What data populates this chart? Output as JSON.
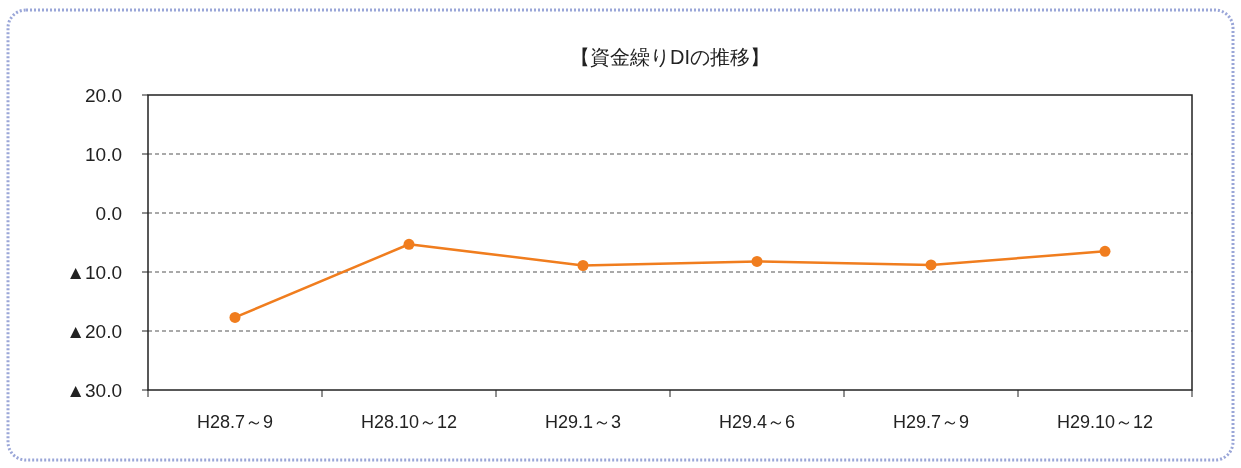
{
  "chart_data": {
    "type": "line",
    "title": "【資金繰りDIの推移】",
    "categories": [
      "H28.7～9",
      "H28.10～12",
      "H29.1～3",
      "H29.4～6",
      "H29.7～9",
      "H29.10～12"
    ],
    "series": [
      {
        "color": "#f07d1e",
        "values": [
          -17.7,
          -5.3,
          -8.9,
          -8.2,
          -8.8,
          -6.5
        ]
      }
    ],
    "ylim": [
      -30,
      20
    ],
    "yticks": [
      {
        "value": 20,
        "label": "20.0"
      },
      {
        "value": 10,
        "label": "10.0"
      },
      {
        "value": 0,
        "label": "0.0"
      },
      {
        "value": -10,
        "label": "▲10.0"
      },
      {
        "value": -20,
        "label": "▲20.0"
      },
      {
        "value": -30,
        "label": "▲30.0"
      }
    ],
    "grid": "y",
    "marker": "circle",
    "line_style": "solid"
  }
}
